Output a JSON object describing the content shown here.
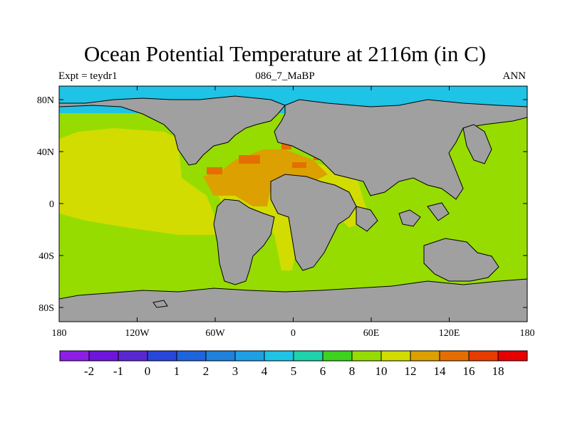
{
  "title": "Ocean Potential Temperature at 2116m (in C)",
  "subtitle_left": "Expt = teydr1",
  "subtitle_center": "086_7_MaBP",
  "subtitle_right": "ANN",
  "x_ticks": [
    "180",
    "120W",
    "60W",
    "0",
    "60E",
    "120E",
    "180"
  ],
  "y_ticks": [
    "80N",
    "40N",
    "0",
    "40S",
    "80S"
  ],
  "colorbar": {
    "colors": [
      "#8c1ee6",
      "#6e14dc",
      "#5a28d2",
      "#2846dc",
      "#1e64dc",
      "#1e82dc",
      "#1ea0e6",
      "#1ec3e6",
      "#1ed2aa",
      "#3cd21e",
      "#96dc00",
      "#d2dc00",
      "#dca000",
      "#e66e00",
      "#e63c00",
      "#e60000"
    ],
    "labels": [
      "-2",
      "-1",
      "0",
      "1",
      "2",
      "3",
      "4",
      "5",
      "6",
      "8",
      "10",
      "12",
      "14",
      "16",
      "18"
    ]
  },
  "colors": {
    "land": "#a0a0a0",
    "ocean_10": "#96dc00",
    "ocean_12": "#d2dc00",
    "ocean_14": "#dca000",
    "ocean_16": "#e66e00",
    "arctic_4": "#1ec3e6"
  }
}
